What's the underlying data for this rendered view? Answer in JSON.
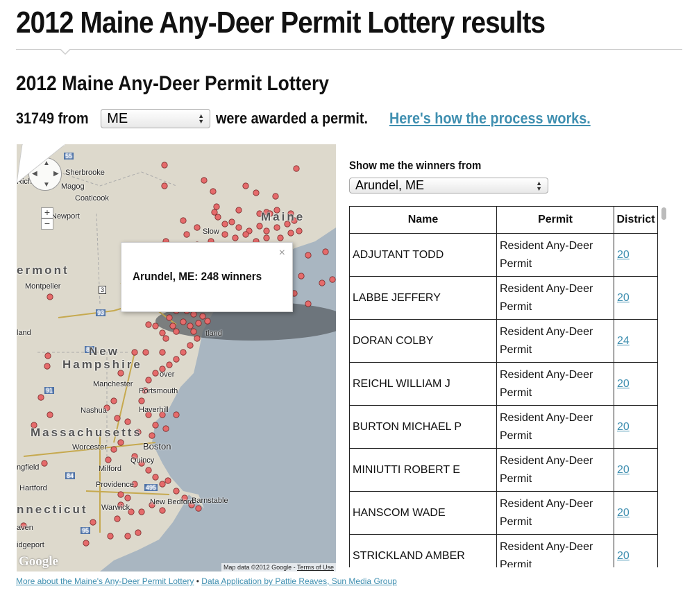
{
  "page": {
    "title": "2012 Maine Any-Deer Permit Lottery results"
  },
  "section": {
    "title": "2012 Maine Any-Deer Permit Lottery"
  },
  "summary": {
    "count": "31749",
    "from_text": "from",
    "state_value": "ME",
    "awarded_text": "were awarded a permit.",
    "process_link": "Here's how the process works."
  },
  "map": {
    "info_text": "Arundel, ME: 248 winners",
    "close_glyph": "×",
    "attribution": "Map data ©2012 Google -",
    "terms_link": "Terms of Use",
    "logo": "Google",
    "zoom_in": "+",
    "zoom_out": "−",
    "labels": {
      "sherbrooke": "Sherbrooke",
      "magog": "Magog",
      "coaticook": "Coaticook",
      "newport": "Newport",
      "montpelier": "Montpelier",
      "manchester": "Manchester",
      "portsmouth": "Portsmouth",
      "nashua": "Nashua",
      "haverhill": "Haverhill",
      "boston": "Boston",
      "worcester": "Worcester",
      "quincy": "Quincy",
      "milford": "Milford",
      "providence": "Providence",
      "hartford": "Hartford",
      "new_bedford": "New Bedford",
      "warwick": "Warwick",
      "barnstable": "Barnstable",
      "springfield": "ngfield",
      "haven": "aven",
      "bridgeport": "idgeport",
      "portland": "tland",
      "richmond": "Rich",
      "lebanon": "land",
      "dover": "over",
      "vermont": "ermont",
      "new": "New",
      "hampshire": "Hampshire",
      "massachusetts": "Massachusetts",
      "connecticut": "nnecticut",
      "maine": "Maine",
      "slow": "Slow",
      "route_55": "55",
      "route_3": "3",
      "route_93": "93",
      "route_89": "89",
      "route_91": "91",
      "route_84": "84",
      "route_495": "495",
      "route_95": "95"
    }
  },
  "winners": {
    "label": "Show me the winners from",
    "town_value": "Arundel, ME",
    "headers": [
      "Name",
      "Permit",
      "District"
    ],
    "rows": [
      {
        "name": "ADJUTANT TODD",
        "permit_line1": "Resident Any-Deer",
        "permit_line2": "Permit",
        "district": "20"
      },
      {
        "name": "LABBE JEFFERY",
        "permit_line1": "Resident Any-Deer",
        "permit_line2": "Permit",
        "district": "20"
      },
      {
        "name": "DORAN COLBY",
        "permit_line1": "Resident Any-Deer",
        "permit_line2": "Permit",
        "district": "24"
      },
      {
        "name": "REICHL WILLIAM J",
        "permit_line1": "Resident Any-Deer",
        "permit_line2": "Permit",
        "district": "20"
      },
      {
        "name": "BURTON MICHAEL P",
        "permit_line1": "Resident Any-Deer",
        "permit_line2": "Permit",
        "district": "20"
      },
      {
        "name": "MINIUTTI ROBERT E",
        "permit_line1": "Resident Any-Deer",
        "permit_line2": "Permit",
        "district": "20"
      },
      {
        "name": "HANSCOM WADE",
        "permit_line1": "Resident Any-Deer",
        "permit_line2": "Permit",
        "district": "20"
      },
      {
        "name": "STRICKLAND AMBER",
        "permit_line1": "Resident Any-Deer",
        "permit_line2": "Permit",
        "district": "20"
      }
    ]
  },
  "footer": {
    "link1": "More about the Maine's Any-Deer Permit Lottery",
    "separator": "•",
    "link2": "Data Application by Pattie Reaves, Sun Media Group"
  },
  "colors": {
    "link": "#3f8fb0",
    "marker": "#e56b6b",
    "ocean": "#a9b6c1",
    "land": "#ddd9cc"
  }
}
